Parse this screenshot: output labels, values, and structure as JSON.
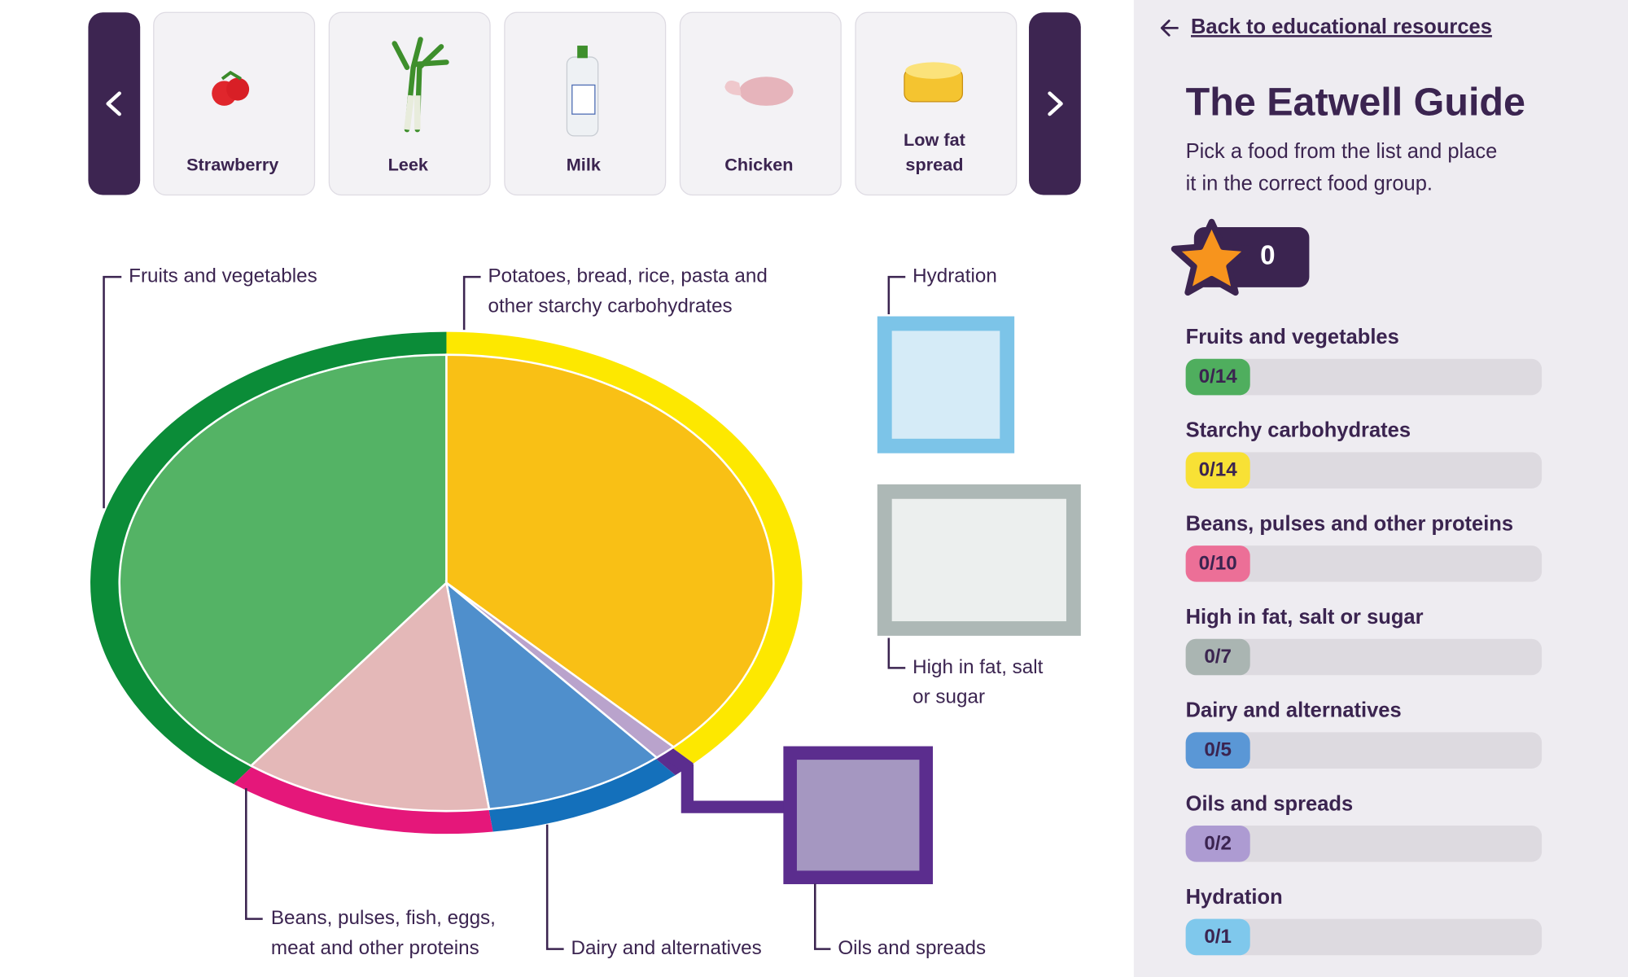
{
  "carousel": {
    "items": [
      {
        "lines": [
          "Strawberry"
        ]
      },
      {
        "lines": [
          "Leek"
        ]
      },
      {
        "lines": [
          "Milk"
        ]
      },
      {
        "lines": [
          "Chicken"
        ]
      },
      {
        "lines": [
          "Low fat",
          "spread"
        ]
      }
    ]
  },
  "diagram": {
    "groups": [
      {
        "lines": [
          "Fruits and vegetables"
        ]
      },
      {
        "lines": [
          "Potatoes, bread, rice, pasta and",
          "other starchy carbohydrates"
        ]
      },
      {
        "lines": [
          "Hydration"
        ]
      },
      {
        "lines": [
          "High in fat, salt",
          "or sugar"
        ]
      },
      {
        "lines": [
          "Beans, pulses, fish, eggs,",
          "meat and other proteins"
        ]
      },
      {
        "lines": [
          "Dairy and alternatives"
        ]
      },
      {
        "lines": [
          "Oils and spreads"
        ]
      }
    ]
  },
  "sidebar": {
    "back_link": "Back to educational resources",
    "title": "The Eatwell Guide",
    "description": [
      "Pick a food from the list and place",
      "it in the correct food group."
    ],
    "score": "0",
    "progress": [
      {
        "name": "Fruits and vegetables",
        "count": "0/14"
      },
      {
        "name": "Starchy carbohydrates",
        "count": "0/14"
      },
      {
        "name": "Beans, pulses and other proteins",
        "count": "0/10"
      },
      {
        "name": "High in fat, salt or sugar",
        "count": "0/7"
      },
      {
        "name": "Dairy and alternatives",
        "count": "0/5"
      },
      {
        "name": "Oils and spreads",
        "count": "0/2"
      },
      {
        "name": "Hydration",
        "count": "0/1"
      }
    ]
  }
}
